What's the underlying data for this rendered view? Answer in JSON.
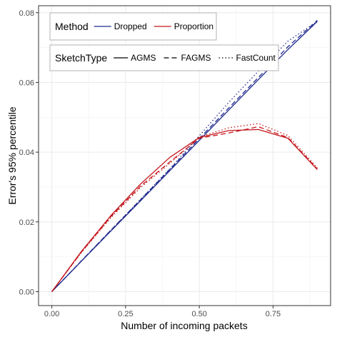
{
  "chart_data": {
    "type": "line",
    "xlabel": "Number of incoming packets",
    "ylabel": "Error's 95% percentile",
    "xlim": [
      -0.045,
      0.945
    ],
    "ylim": [
      -0.004,
      0.082
    ],
    "x_ticks": [
      0.0,
      0.25,
      0.5,
      0.75
    ],
    "x_tick_labels": [
      "0.00",
      "0.25",
      "0.50",
      "0.75"
    ],
    "y_ticks": [
      0.0,
      0.02,
      0.04,
      0.06,
      0.08
    ],
    "y_tick_labels": [
      "0.00",
      "0.02",
      "0.04",
      "0.06",
      "0.08"
    ],
    "grid": true,
    "legend_placement": "top-left",
    "legends": [
      {
        "title": "Method",
        "items": [
          {
            "label": "Dropped",
            "color": "#1f2a8c",
            "style": "solid"
          },
          {
            "label": "Proportion",
            "color": "#c4161c",
            "style": "solid"
          }
        ]
      },
      {
        "title": "SketchType",
        "items": [
          {
            "label": "AGMS",
            "color": "#000000",
            "style": "solid"
          },
          {
            "label": "FAGMS",
            "color": "#000000",
            "style": "dashed"
          },
          {
            "label": "FastCount",
            "color": "#000000",
            "style": "dotted"
          }
        ]
      }
    ],
    "series": [
      {
        "method": "Dropped",
        "sketch": "AGMS",
        "color": "#1f2a8c",
        "style": "solid",
        "x": [
          0.0,
          0.1,
          0.2,
          0.3,
          0.4,
          0.5,
          0.6,
          0.7,
          0.8,
          0.9
        ],
        "y": [
          0.0,
          0.0087,
          0.0174,
          0.026,
          0.0347,
          0.0434,
          0.0521,
          0.0608,
          0.0694,
          0.0775
        ]
      },
      {
        "method": "Dropped",
        "sketch": "FAGMS",
        "color": "#1f2a8c",
        "style": "dashed",
        "x": [
          0.0,
          0.1,
          0.2,
          0.3,
          0.4,
          0.5,
          0.6,
          0.7,
          0.8,
          0.9
        ],
        "y": [
          0.0,
          0.0088,
          0.0176,
          0.0263,
          0.0351,
          0.0439,
          0.0527,
          0.0614,
          0.0702,
          0.0778
        ]
      },
      {
        "method": "Dropped",
        "sketch": "FastCount",
        "color": "#1f2a8c",
        "style": "dotted",
        "x": [
          0.0,
          0.1,
          0.2,
          0.3,
          0.4,
          0.5,
          0.6,
          0.7,
          0.8,
          0.9
        ],
        "y": [
          0.0,
          0.0088,
          0.0176,
          0.0264,
          0.0352,
          0.0447,
          0.0543,
          0.0632,
          0.0718,
          0.0775
        ]
      },
      {
        "method": "Proportion",
        "sketch": "AGMS",
        "color": "#c4161c",
        "style": "solid",
        "x": [
          0.0,
          0.1,
          0.2,
          0.3,
          0.4,
          0.5,
          0.6,
          0.7,
          0.8,
          0.9
        ],
        "y": [
          0.0,
          0.0115,
          0.0218,
          0.0308,
          0.0385,
          0.0442,
          0.0462,
          0.0465,
          0.044,
          0.035
        ]
      },
      {
        "method": "Proportion",
        "sketch": "FAGMS",
        "color": "#c4161c",
        "style": "dashed",
        "x": [
          0.0,
          0.1,
          0.2,
          0.3,
          0.4,
          0.5,
          0.6,
          0.7,
          0.8,
          0.9
        ],
        "y": [
          0.0,
          0.0113,
          0.0215,
          0.0302,
          0.0372,
          0.044,
          0.0455,
          0.0473,
          0.0442,
          0.0352
        ]
      },
      {
        "method": "Proportion",
        "sketch": "FastCount",
        "color": "#c4161c",
        "style": "dotted",
        "x": [
          0.0,
          0.1,
          0.2,
          0.3,
          0.4,
          0.5,
          0.6,
          0.7,
          0.8,
          0.9
        ],
        "y": [
          0.0,
          0.0112,
          0.0212,
          0.0298,
          0.0368,
          0.0443,
          0.047,
          0.0482,
          0.0448,
          0.0355
        ]
      }
    ]
  }
}
